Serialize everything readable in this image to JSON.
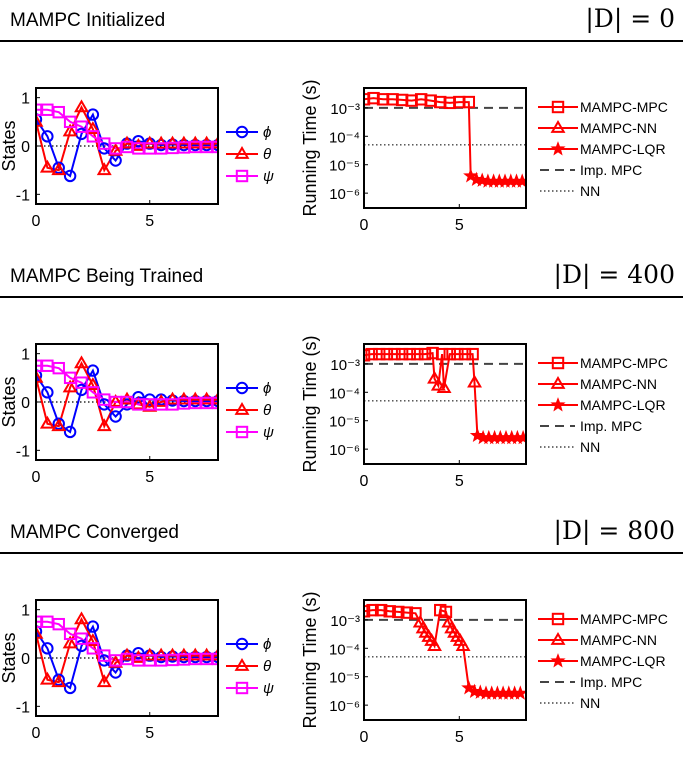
{
  "panels": [
    {
      "title": "MAMPC Initialized",
      "dataset": "|D| = 0"
    },
    {
      "title": "MAMPC Being Trained",
      "dataset": "|D| = 400"
    },
    {
      "title": "MAMPC Converged",
      "dataset": "|D| = 800"
    }
  ],
  "colors": {
    "phi": "#0000ff",
    "theta": "#ff0000",
    "psi": "#ff00ff",
    "mampc": "#ff0000",
    "ref": "#000000"
  },
  "chart_data": [
    {
      "type": "line",
      "panel": 0,
      "ylabel": "States",
      "xlim": [
        0,
        8
      ],
      "ylim": [
        -1.2,
        1.2
      ],
      "xticks": [
        0,
        5
      ],
      "yticks": [
        -1,
        0,
        1
      ],
      "series": [
        {
          "name": "ϕ",
          "marker": "circle",
          "color": "#0000ff",
          "x": [
            0,
            0.5,
            1,
            1.5,
            2,
            2.5,
            3,
            3.5,
            4,
            4.5,
            5,
            5.5,
            6,
            6.5,
            7,
            7.5,
            8
          ],
          "y": [
            0.55,
            0.2,
            -0.45,
            -0.62,
            0.25,
            0.65,
            -0.05,
            -0.3,
            0.05,
            0.1,
            0.05,
            0.02,
            0.03,
            0.02,
            0.02,
            0.02,
            0.02
          ]
        },
        {
          "name": "θ",
          "marker": "triangle",
          "color": "#ff0000",
          "x": [
            0,
            0.5,
            1,
            1.5,
            2,
            2.5,
            3,
            3.5,
            4,
            4.5,
            5,
            5.5,
            6,
            6.5,
            7,
            7.5,
            8
          ],
          "y": [
            0.5,
            -0.45,
            -0.5,
            0.3,
            0.8,
            0.35,
            -0.5,
            -0.1,
            0.05,
            0.0,
            0.05,
            0.05,
            0.05,
            0.05,
            0.05,
            0.05,
            0.05
          ]
        },
        {
          "name": "ψ",
          "marker": "square",
          "color": "#ff00ff",
          "x": [
            0,
            0.5,
            1,
            1.5,
            2,
            2.5,
            3,
            3.5,
            4,
            4.5,
            5,
            5.5,
            6,
            6.5,
            7,
            7.5,
            8
          ],
          "y": [
            0.75,
            0.75,
            0.7,
            0.5,
            0.4,
            0.2,
            0.05,
            -0.05,
            -0.02,
            -0.05,
            -0.05,
            -0.05,
            -0.04,
            -0.03,
            -0.02,
            -0.02,
            -0.02
          ]
        }
      ],
      "reference_line": 0
    },
    {
      "type": "line",
      "panel": 0,
      "ylabel": "Running Time (s)",
      "yscale": "log",
      "xlim": [
        0,
        8.5
      ],
      "ylim": [
        3e-07,
        0.005
      ],
      "xticks": [
        0,
        5
      ],
      "yticks": [
        1e-06,
        1e-05,
        0.0001,
        0.001
      ],
      "ytick_labels": [
        "10⁻⁶",
        "10⁻⁵",
        "10⁻⁴",
        "10⁻³"
      ],
      "series": [
        {
          "name": "MAMPC-MPC",
          "marker": "square",
          "color": "#ff0000",
          "x": [
            0,
            0.5,
            1,
            1.5,
            2,
            2.5,
            3,
            3.5,
            4,
            4.5,
            5,
            5.5
          ],
          "y": [
            0.002,
            0.0022,
            0.002,
            0.002,
            0.0019,
            0.0018,
            0.002,
            0.0018,
            0.0016,
            0.0015,
            0.0016,
            0.0016
          ]
        },
        {
          "name": "MAMPC-NN",
          "marker": "triangle",
          "color": "#ff0000",
          "x": [],
          "y": []
        },
        {
          "name": "MAMPC-LQR",
          "marker": "star",
          "color": "#ff0000",
          "x": [
            5.6,
            5.9,
            6.2,
            6.5,
            6.8,
            7.1,
            7.4,
            7.7,
            8.0,
            8.3
          ],
          "y": [
            4e-06,
            3e-06,
            2.8e-06,
            2.6e-06,
            2.6e-06,
            2.6e-06,
            2.6e-06,
            2.6e-06,
            2.6e-06,
            2.6e-06
          ]
        }
      ],
      "transition": [
        [
          5.5,
          0.0016
        ],
        [
          5.6,
          4e-06
        ]
      ],
      "legend": [
        "MAMPC-MPC",
        "MAMPC-NN",
        "MAMPC-LQR",
        "Imp. MPC",
        "NN"
      ],
      "hlines": [
        {
          "name": "Imp. MPC",
          "y": 0.001,
          "style": "dashed"
        },
        {
          "name": "NN",
          "y": 5e-05,
          "style": "dotted"
        }
      ]
    },
    {
      "type": "line",
      "panel": 1,
      "ylabel": "States",
      "xlim": [
        0,
        8
      ],
      "ylim": [
        -1.2,
        1.2
      ],
      "xticks": [
        0,
        5
      ],
      "yticks": [
        -1,
        0,
        1
      ],
      "series": [
        {
          "name": "ϕ",
          "marker": "circle",
          "color": "#0000ff",
          "x": [
            0,
            0.5,
            1,
            1.5,
            2,
            2.5,
            3,
            3.5,
            4,
            4.5,
            5,
            5.5,
            6,
            6.5,
            7,
            7.5,
            8
          ],
          "y": [
            0.55,
            0.2,
            -0.45,
            -0.62,
            0.25,
            0.65,
            -0.05,
            -0.3,
            -0.05,
            0.1,
            0.05,
            0.05,
            0.03,
            0.02,
            0.02,
            0.02,
            0.02
          ]
        },
        {
          "name": "θ",
          "marker": "triangle",
          "color": "#ff0000",
          "x": [
            0,
            0.5,
            1,
            1.5,
            2,
            2.5,
            3,
            3.5,
            4,
            4.5,
            5,
            5.5,
            6,
            6.5,
            7,
            7.5,
            8
          ],
          "y": [
            0.5,
            -0.45,
            -0.5,
            0.3,
            0.8,
            0.35,
            -0.5,
            0.0,
            0.05,
            -0.05,
            -0.1,
            0.0,
            0.05,
            0.05,
            0.05,
            0.05,
            0.05
          ]
        },
        {
          "name": "ψ",
          "marker": "square",
          "color": "#ff00ff",
          "x": [
            0,
            0.5,
            1,
            1.5,
            2,
            2.5,
            3,
            3.5,
            4,
            4.5,
            5,
            5.5,
            6,
            6.5,
            7,
            7.5,
            8
          ],
          "y": [
            0.75,
            0.75,
            0.7,
            0.5,
            0.4,
            0.2,
            0.05,
            0.0,
            0.0,
            -0.05,
            -0.05,
            -0.05,
            -0.05,
            -0.03,
            -0.02,
            -0.02,
            -0.02
          ]
        }
      ],
      "reference_line": 0
    },
    {
      "type": "line",
      "panel": 1,
      "ylabel": "Running Time (s)",
      "yscale": "log",
      "xlim": [
        0,
        8.5
      ],
      "ylim": [
        3e-07,
        0.005
      ],
      "xticks": [
        0,
        5
      ],
      "yticks": [
        1e-06,
        1e-05,
        0.0001,
        0.001
      ],
      "ytick_labels": [
        "10⁻⁶",
        "10⁻⁵",
        "10⁻⁴",
        "10⁻³"
      ],
      "series": [
        {
          "name": "MAMPC-MPC",
          "marker": "square",
          "color": "#ff0000",
          "x": [
            0,
            0.4,
            0.8,
            1.2,
            1.6,
            2,
            2.4,
            2.8,
            3.2,
            3.6,
            4.1,
            4.5,
            4.9,
            5.3,
            5.7
          ],
          "y": [
            0.002,
            0.0022,
            0.0022,
            0.0022,
            0.0022,
            0.0022,
            0.0022,
            0.0022,
            0.0022,
            0.0024,
            0.0022,
            0.0022,
            0.0022,
            0.0022,
            0.0022
          ]
        },
        {
          "name": "MAMPC-NN",
          "marker": "triangle",
          "color": "#ff0000",
          "x": [
            3.7,
            3.9,
            4.2,
            5.8
          ],
          "y": [
            0.0003,
            0.00017,
            0.00014,
            0.00022
          ]
        },
        {
          "name": "MAMPC-LQR",
          "marker": "star",
          "color": "#ff0000",
          "x": [
            5.95,
            6.25,
            6.55,
            6.85,
            7.15,
            7.45,
            7.75,
            8.05,
            8.35
          ],
          "y": [
            3e-06,
            2.5e-06,
            2.5e-06,
            2.5e-06,
            2.5e-06,
            2.5e-06,
            2.5e-06,
            2.5e-06,
            2.5e-06
          ]
        }
      ],
      "legend": [
        "MAMPC-MPC",
        "MAMPC-NN",
        "MAMPC-LQR",
        "Imp. MPC",
        "NN"
      ],
      "hlines": [
        {
          "name": "Imp. MPC",
          "y": 0.001,
          "style": "dashed"
        },
        {
          "name": "NN",
          "y": 5e-05,
          "style": "dotted"
        }
      ]
    },
    {
      "type": "line",
      "panel": 2,
      "ylabel": "States",
      "xlim": [
        0,
        8
      ],
      "ylim": [
        -1.2,
        1.2
      ],
      "xticks": [
        0,
        5
      ],
      "yticks": [
        -1,
        0,
        1
      ],
      "series": [
        {
          "name": "ϕ",
          "marker": "circle",
          "color": "#0000ff",
          "x": [
            0,
            0.5,
            1,
            1.5,
            2,
            2.5,
            3,
            3.5,
            4,
            4.5,
            5,
            5.5,
            6,
            6.5,
            7,
            7.5,
            8
          ],
          "y": [
            0.55,
            0.2,
            -0.45,
            -0.62,
            0.25,
            0.65,
            -0.05,
            -0.3,
            0.05,
            0.1,
            0.05,
            0.02,
            0.03,
            0.02,
            0.02,
            0.02,
            0.02
          ]
        },
        {
          "name": "θ",
          "marker": "triangle",
          "color": "#ff0000",
          "x": [
            0,
            0.5,
            1,
            1.5,
            2,
            2.5,
            3,
            3.5,
            4,
            4.5,
            5,
            5.5,
            6,
            6.5,
            7,
            7.5,
            8
          ],
          "y": [
            0.5,
            -0.45,
            -0.5,
            0.3,
            0.8,
            0.35,
            -0.5,
            -0.1,
            0.05,
            0.0,
            0.05,
            0.05,
            0.05,
            0.05,
            0.05,
            0.05,
            0.05
          ]
        },
        {
          "name": "ψ",
          "marker": "square",
          "color": "#ff00ff",
          "x": [
            0,
            0.5,
            1,
            1.5,
            2,
            2.5,
            3,
            3.5,
            4,
            4.5,
            5,
            5.5,
            6,
            6.5,
            7,
            7.5,
            8
          ],
          "y": [
            0.75,
            0.75,
            0.7,
            0.5,
            0.4,
            0.2,
            0.05,
            -0.05,
            -0.02,
            -0.05,
            -0.05,
            -0.05,
            -0.04,
            -0.03,
            -0.02,
            -0.02,
            -0.02
          ]
        }
      ],
      "reference_line": 0
    },
    {
      "type": "line",
      "panel": 2,
      "ylabel": "Running Time (s)",
      "yscale": "log",
      "xlim": [
        0,
        8.5
      ],
      "ylim": [
        3e-07,
        0.005
      ],
      "xticks": [
        0,
        5
      ],
      "yticks": [
        1e-06,
        1e-05,
        0.0001,
        0.001
      ],
      "ytick_labels": [
        "10⁻⁶",
        "10⁻⁵",
        "10⁻⁴",
        "10⁻³"
      ],
      "series": [
        {
          "name": "MAMPC-MPC",
          "marker": "square",
          "color": "#ff0000",
          "x": [
            0,
            0.45,
            0.9,
            1.35,
            1.8,
            2.25,
            2.7,
            4.0,
            4.3
          ],
          "y": [
            0.002,
            0.0022,
            0.0022,
            0.002,
            0.0019,
            0.0018,
            0.0017,
            0.0022,
            0.0019
          ]
        },
        {
          "name": "MAMPC-NN",
          "marker": "triangle",
          "color": "#ff0000",
          "x": [
            2.95,
            3.1,
            3.25,
            3.4,
            3.55,
            3.7,
            4.45,
            4.6,
            4.75,
            4.9,
            5.05,
            5.2
          ],
          "y": [
            0.0008,
            0.0005,
            0.00035,
            0.00025,
            0.00018,
            0.00012,
            0.0008,
            0.0005,
            0.00035,
            0.00025,
            0.00018,
            0.00012
          ]
        },
        {
          "name": "MAMPC-LQR",
          "marker": "star",
          "color": "#ff0000",
          "x": [
            5.5,
            5.8,
            6.1,
            6.4,
            6.7,
            7.0,
            7.3,
            7.6,
            7.9,
            8.2
          ],
          "y": [
            4e-06,
            3e-06,
            2.8e-06,
            2.6e-06,
            2.6e-06,
            2.6e-06,
            2.6e-06,
            2.6e-06,
            2.6e-06,
            2.6e-06
          ]
        }
      ],
      "legend": [
        "MAMPC-MPC",
        "MAMPC-NN",
        "MAMPC-LQR",
        "Imp. MPC",
        "NN"
      ],
      "hlines": [
        {
          "name": "Imp. MPC",
          "y": 0.001,
          "style": "dashed"
        },
        {
          "name": "NN",
          "y": 5e-05,
          "style": "dotted"
        }
      ]
    }
  ]
}
